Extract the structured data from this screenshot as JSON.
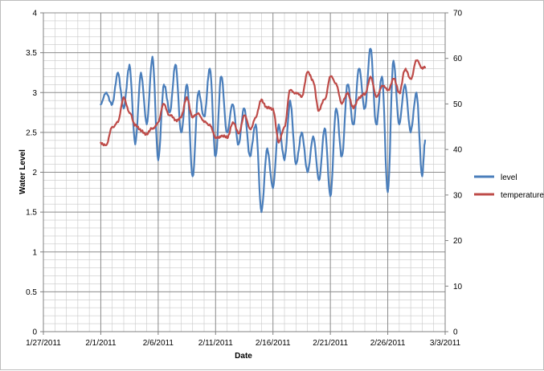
{
  "chart_data": {
    "type": "line",
    "title": "",
    "xlabel": "Date",
    "ylabel": "Water Level",
    "y2label": "",
    "x_ticks": [
      "1/27/2011",
      "2/1/2011",
      "2/6/2011",
      "2/11/2011",
      "2/16/2011",
      "2/21/2011",
      "2/26/2011",
      "3/3/2011"
    ],
    "xlim": [
      "1/27/2011",
      "3/3/2011"
    ],
    "ylim": [
      0,
      4
    ],
    "y_ticks": [
      "0",
      "0.5",
      "1",
      "1.5",
      "2",
      "2.5",
      "3",
      "3.5",
      "4"
    ],
    "y2lim": [
      0,
      70
    ],
    "y2_ticks": [
      "0",
      "10",
      "20",
      "30",
      "40",
      "50",
      "60",
      "70"
    ],
    "grid": true,
    "legend_position": "right",
    "series": [
      {
        "name": "level",
        "axis": "left",
        "color": "#4a7ebb",
        "points": [
          [
            "2/1/2011",
            2.85
          ],
          [
            "2/1/2011 12:00",
            3.0
          ],
          [
            "2/2/2011",
            2.85
          ],
          [
            "2/2/2011 12:00",
            3.25
          ],
          [
            "2/3/2011",
            2.8
          ],
          [
            "2/3/2011 12:00",
            3.35
          ],
          [
            "2/4/2011",
            2.35
          ],
          [
            "2/4/2011 12:00",
            3.25
          ],
          [
            "2/5/2011",
            2.6
          ],
          [
            "2/5/2011 12:00",
            3.45
          ],
          [
            "2/6/2011",
            2.15
          ],
          [
            "2/6/2011 12:00",
            3.1
          ],
          [
            "2/7/2011",
            2.75
          ],
          [
            "2/7/2011 12:00",
            3.35
          ],
          [
            "2/8/2011",
            2.5
          ],
          [
            "2/8/2011 12:00",
            3.1
          ],
          [
            "2/9/2011",
            1.95
          ],
          [
            "2/9/2011 12:00",
            3.0
          ],
          [
            "2/10/2011",
            2.7
          ],
          [
            "2/10/2011 12:00",
            3.3
          ],
          [
            "2/11/2011",
            2.2
          ],
          [
            "2/11/2011 12:00",
            3.2
          ],
          [
            "2/12/2011",
            2.5
          ],
          [
            "2/12/2011 12:00",
            2.85
          ],
          [
            "2/13/2011",
            2.35
          ],
          [
            "2/13/2011 12:00",
            2.8
          ],
          [
            "2/14/2011",
            2.2
          ],
          [
            "2/14/2011 12:00",
            2.6
          ],
          [
            "2/15/2011",
            1.5
          ],
          [
            "2/15/2011 12:00",
            2.3
          ],
          [
            "2/16/2011",
            1.8
          ],
          [
            "2/16/2011 12:00",
            2.6
          ],
          [
            "2/17/2011",
            2.15
          ],
          [
            "2/17/2011 12:00",
            2.9
          ],
          [
            "2/18/2011",
            2.1
          ],
          [
            "2/18/2011 12:00",
            2.5
          ],
          [
            "2/19/2011",
            2.0
          ],
          [
            "2/19/2011 12:00",
            2.45
          ],
          [
            "2/20/2011",
            1.9
          ],
          [
            "2/20/2011 12:00",
            2.55
          ],
          [
            "2/21/2011",
            1.7
          ],
          [
            "2/21/2011 12:00",
            2.8
          ],
          [
            "2/22/2011",
            2.2
          ],
          [
            "2/22/2011 12:00",
            3.1
          ],
          [
            "2/23/2011",
            2.6
          ],
          [
            "2/23/2011 12:00",
            3.3
          ],
          [
            "2/24/2011",
            2.8
          ],
          [
            "2/24/2011 12:00",
            3.55
          ],
          [
            "2/25/2011",
            2.6
          ],
          [
            "2/25/2011 12:00",
            3.2
          ],
          [
            "2/26/2011",
            1.75
          ],
          [
            "2/26/2011 12:00",
            3.4
          ],
          [
            "2/27/2011",
            2.6
          ],
          [
            "2/27/2011 12:00",
            3.1
          ],
          [
            "2/28/2011",
            2.5
          ],
          [
            "2/28/2011 12:00",
            3.0
          ],
          [
            "3/1/2011",
            1.95
          ],
          [
            "3/1/2011 06:00",
            2.4
          ]
        ]
      },
      {
        "name": "temperature",
        "axis": "right",
        "color": "#be4b48",
        "points": [
          [
            "2/1/2011",
            41.5
          ],
          [
            "2/1/2011 12:00",
            41.0
          ],
          [
            "2/2/2011",
            45.0
          ],
          [
            "2/2/2011 12:00",
            46.0
          ],
          [
            "2/3/2011",
            51.5
          ],
          [
            "2/3/2011 12:00",
            48.0
          ],
          [
            "2/4/2011",
            45.5
          ],
          [
            "2/4/2011 12:00",
            44.0
          ],
          [
            "2/5/2011",
            43.5
          ],
          [
            "2/5/2011 12:00",
            44.5
          ],
          [
            "2/6/2011",
            46.0
          ],
          [
            "2/6/2011 12:00",
            50.0
          ],
          [
            "2/7/2011",
            47.5
          ],
          [
            "2/7/2011 12:00",
            46.5
          ],
          [
            "2/8/2011",
            47.0
          ],
          [
            "2/8/2011 12:00",
            51.5
          ],
          [
            "2/9/2011",
            47.0
          ],
          [
            "2/9/2011 12:00",
            48.0
          ],
          [
            "2/10/2011",
            46.0
          ],
          [
            "2/10/2011 12:00",
            45.5
          ],
          [
            "2/11/2011",
            42.5
          ],
          [
            "2/11/2011 12:00",
            43.0
          ],
          [
            "2/12/2011",
            42.5
          ],
          [
            "2/12/2011 12:00",
            46.0
          ],
          [
            "2/13/2011",
            43.5
          ],
          [
            "2/13/2011 12:00",
            47.5
          ],
          [
            "2/14/2011",
            44.5
          ],
          [
            "2/14/2011 12:00",
            47.0
          ],
          [
            "2/15/2011",
            51.0
          ],
          [
            "2/15/2011 12:00",
            49.0
          ],
          [
            "2/16/2011",
            49.0
          ],
          [
            "2/16/2011 12:00",
            41.5
          ],
          [
            "2/17/2011",
            45.0
          ],
          [
            "2/17/2011 12:00",
            53.0
          ],
          [
            "2/18/2011",
            52.5
          ],
          [
            "2/18/2011 12:00",
            51.5
          ],
          [
            "2/19/2011",
            57.0
          ],
          [
            "2/19/2011 12:00",
            55.0
          ],
          [
            "2/20/2011",
            48.5
          ],
          [
            "2/20/2011 12:00",
            51.0
          ],
          [
            "2/21/2011",
            56.0
          ],
          [
            "2/21/2011 12:00",
            54.5
          ],
          [
            "2/22/2011",
            50.0
          ],
          [
            "2/22/2011 12:00",
            52.5
          ],
          [
            "2/23/2011",
            49.0
          ],
          [
            "2/23/2011 12:00",
            51.5
          ],
          [
            "2/24/2011",
            52.0
          ],
          [
            "2/24/2011 12:00",
            56.0
          ],
          [
            "2/25/2011",
            51.5
          ],
          [
            "2/25/2011 12:00",
            54.0
          ],
          [
            "2/26/2011",
            53.0
          ],
          [
            "2/26/2011 12:00",
            55.5
          ],
          [
            "2/27/2011",
            52.5
          ],
          [
            "2/27/2011 12:00",
            57.5
          ],
          [
            "2/28/2011",
            55.5
          ],
          [
            "2/28/2011 12:00",
            59.5
          ],
          [
            "3/1/2011",
            58.0
          ],
          [
            "3/1/2011 06:00",
            58.0
          ]
        ]
      }
    ]
  }
}
